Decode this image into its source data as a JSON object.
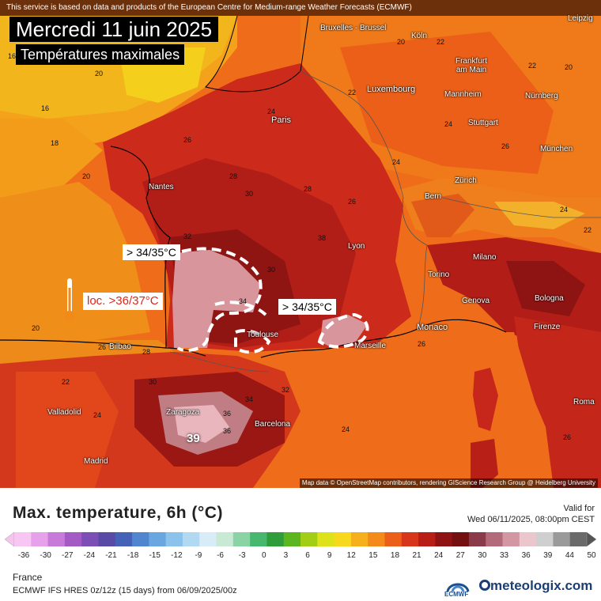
{
  "header": {
    "note": "This service is based on data and products of the European Centre for Medium-range Weather Forecasts (ECMWF)",
    "date_title": "Mercredi 11 juin 2025",
    "subtitle": "Températures maximales"
  },
  "callouts": {
    "left": "> 34/35°C",
    "right": "> 34/35°C",
    "local": "loc. >36/37°C",
    "spain_max": "39"
  },
  "cities": [
    {
      "name": "Bruxelles - Brussel"
    },
    {
      "name": "Köln"
    },
    {
      "name": "Leipzig"
    },
    {
      "name": "Frankfurt am Main"
    },
    {
      "name": "Luxembourg"
    },
    {
      "name": "Mannheim"
    },
    {
      "name": "Nürnberg"
    },
    {
      "name": "Paris"
    },
    {
      "name": "Stuttgart"
    },
    {
      "name": "München"
    },
    {
      "name": "Nantes"
    },
    {
      "name": "Bern"
    },
    {
      "name": "Zürich"
    },
    {
      "name": "Lyon"
    },
    {
      "name": "Milano"
    },
    {
      "name": "Torino"
    },
    {
      "name": "Genova"
    },
    {
      "name": "Bologna"
    },
    {
      "name": "Firenze"
    },
    {
      "name": "Monaco"
    },
    {
      "name": "Marseille"
    },
    {
      "name": "Toulouse"
    },
    {
      "name": "Bilbao"
    },
    {
      "name": "Valladolid"
    },
    {
      "name": "Zaragoza"
    },
    {
      "name": "Barcelona"
    },
    {
      "name": "Madrid"
    },
    {
      "name": "Roma"
    }
  ],
  "isotherm_labels": [
    "16",
    "18",
    "20",
    "22",
    "24",
    "26",
    "28",
    "30",
    "32",
    "34",
    "36",
    "38",
    "20",
    "22",
    "24",
    "26",
    "28",
    "30",
    "24",
    "26",
    "16",
    "20",
    "22",
    "24",
    "26",
    "20",
    "22",
    "24",
    "26",
    "28",
    "30",
    "32",
    "34",
    "36",
    "20",
    "22",
    "24",
    "26"
  ],
  "credit": "Map data © OpenStreetMap contributors, rendering GIScience Research Group @ Heidelberg University",
  "legend": {
    "title": "Max. temperature, 6h (°C)",
    "valid_for": "Valid for",
    "valid_date": "Wed 06/11/2025, 08:00pm CEST",
    "ticks": [
      "-36",
      "-30",
      "-27",
      "-24",
      "-21",
      "-18",
      "-15",
      "-12",
      "-9",
      "-6",
      "-3",
      "0",
      "3",
      "6",
      "9",
      "12",
      "15",
      "18",
      "21",
      "24",
      "27",
      "30",
      "33",
      "36",
      "39",
      "44",
      "50"
    ],
    "region": "France",
    "model": "ECMWF IFS HRES 0z/12z (15 days) from 06/09/2025/00z",
    "ecmwf": "ECMWF",
    "brand": "meteologix.com"
  },
  "colors": {
    "sea_north": "#f3a418",
    "land_hot": "#c8241c",
    "land_very_hot": "#8e1212",
    "extreme": "#d79aa0",
    "sea_south": "#ee6a1a",
    "channel": "#f5d11c"
  }
}
